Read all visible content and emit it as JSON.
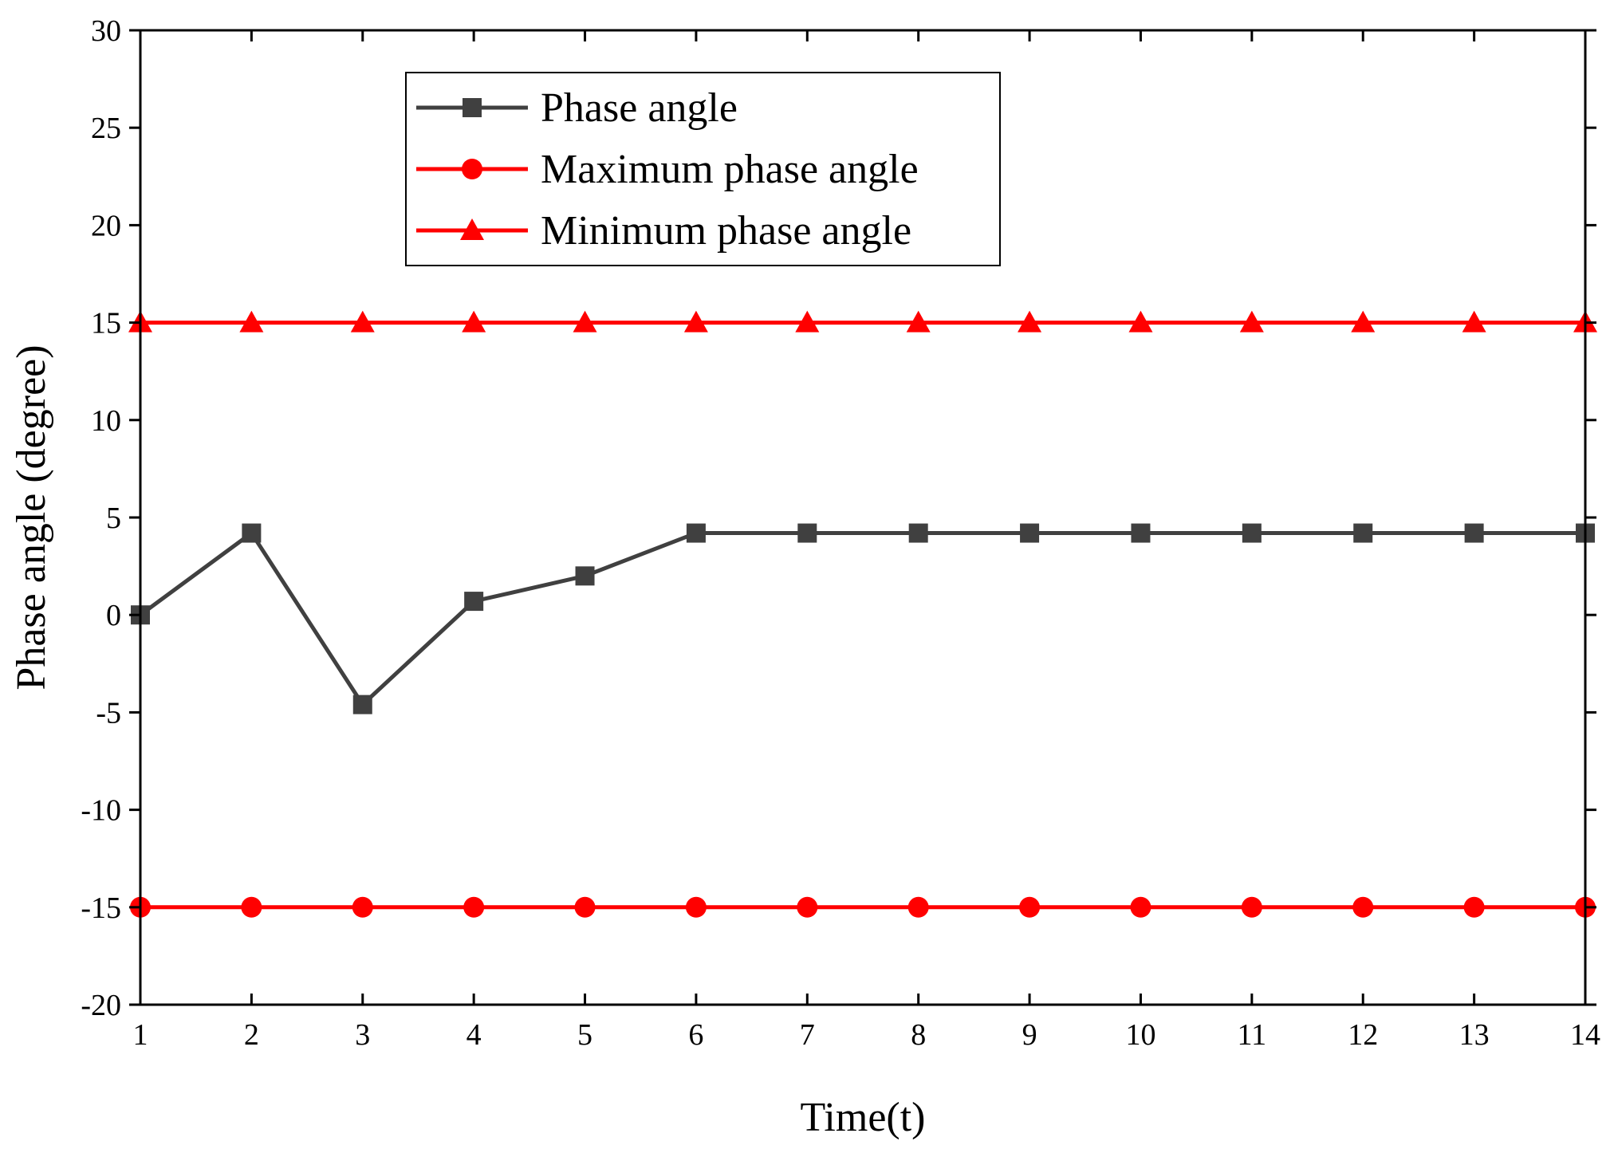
{
  "chart_data": {
    "type": "line",
    "title": "",
    "xlabel": "Time(t)",
    "ylabel": "Phase angle (degree)",
    "xlim": [
      1,
      14
    ],
    "ylim": [
      -20,
      30
    ],
    "xticks": [
      "1",
      "2",
      "3",
      "4",
      "5",
      "6",
      "7",
      "8",
      "9",
      "10",
      "11",
      "12",
      "13",
      "14"
    ],
    "yticks": [
      "-20",
      "-15",
      "-10",
      "-5",
      "0",
      "5",
      "10",
      "15",
      "20",
      "25",
      "30"
    ],
    "x": [
      1,
      2,
      3,
      4,
      5,
      6,
      7,
      8,
      9,
      10,
      11,
      12,
      13,
      14
    ],
    "series": [
      {
        "name": "Phase angle",
        "marker": "square",
        "color": "#404040",
        "values": [
          0,
          4.2,
          -4.6,
          0.7,
          2.0,
          4.2,
          4.2,
          4.2,
          4.2,
          4.2,
          4.2,
          4.2,
          4.2,
          4.2
        ]
      },
      {
        "name": "Maximum phase angle",
        "marker": "circle",
        "color": "#ff0000",
        "values": [
          -15,
          -15,
          -15,
          -15,
          -15,
          -15,
          -15,
          -15,
          -15,
          -15,
          -15,
          -15,
          -15,
          -15
        ]
      },
      {
        "name": "Minimum phase angle",
        "marker": "triangle",
        "color": "#ff0000",
        "values": [
          15,
          15,
          15,
          15,
          15,
          15,
          15,
          15,
          15,
          15,
          15,
          15,
          15,
          15
        ]
      }
    ],
    "legend_position": "top-center",
    "grid": false
  }
}
